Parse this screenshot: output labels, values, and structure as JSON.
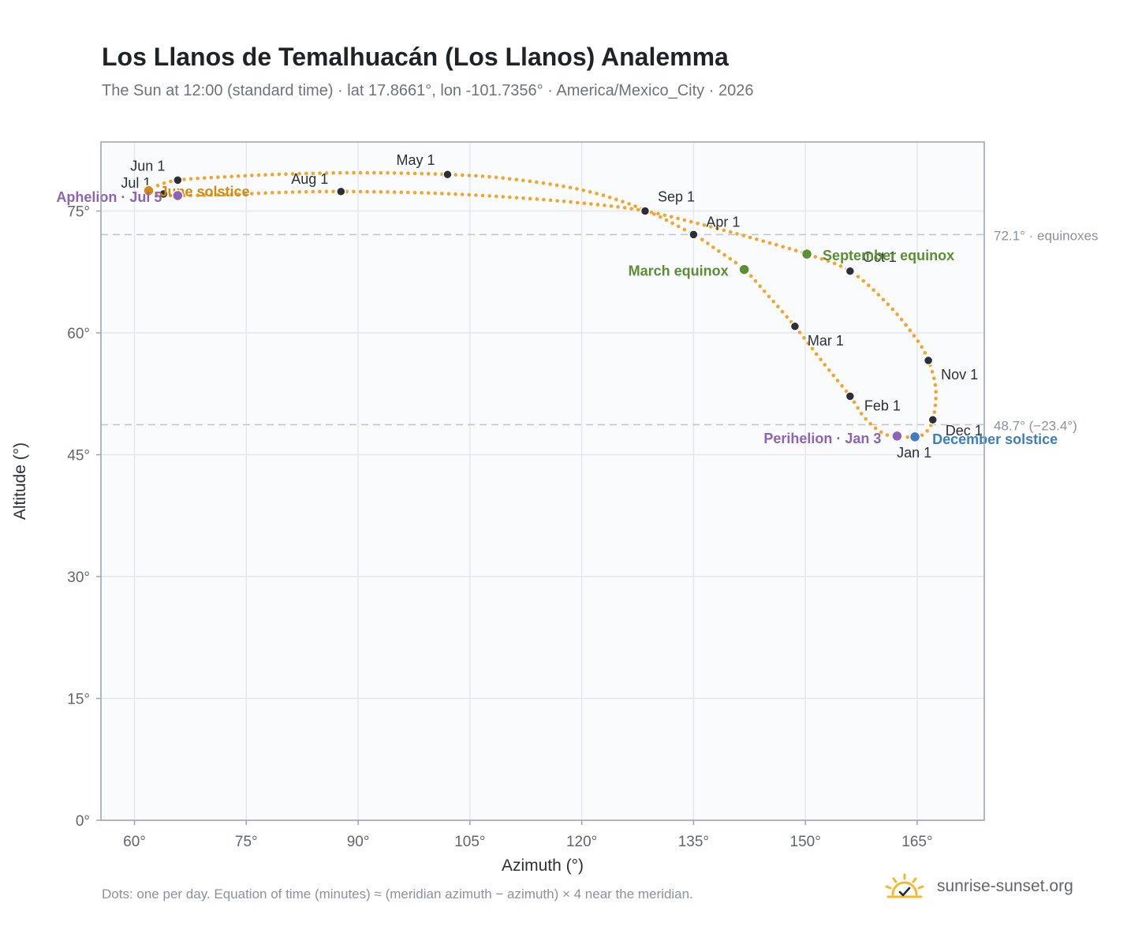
{
  "header": {
    "title": "Los Llanos de Temalhuacán (Los Llanos) Analemma",
    "subtitle": "The Sun at 12:00 (standard time) · lat 17.8661°, lon -101.7356° · America/Mexico_City · 2026"
  },
  "footer": {
    "note": "Dots: one per day. Equation of time (minutes) ≈ (meridian azimuth − azimuth) × 4 near the meridian.",
    "brand": "sunrise-sunset.org",
    "brand_icon": "sunrise-check-icon"
  },
  "colors": {
    "curve": "#f4a62a",
    "month_marker": "#2b3038",
    "equinox": "#5a8f33",
    "solstice_dec": "#3d7ec2",
    "solstice_jun": "#d48a12",
    "apsis": "#8e63b4",
    "reference_line": "#c2c8d0",
    "plot_bg": "#f9fbfd"
  },
  "chart_data": {
    "type": "scatter",
    "xlabel": "Azimuth (°)",
    "ylabel": "Altitude (°)",
    "xlim": [
      55.5,
      174
    ],
    "ylim": [
      0,
      83.5
    ],
    "x_ticks": [
      {
        "value": 60,
        "label": "60°"
      },
      {
        "value": 75,
        "label": "75°"
      },
      {
        "value": 90,
        "label": "90°"
      },
      {
        "value": 105,
        "label": "105°"
      },
      {
        "value": 120,
        "label": "120°"
      },
      {
        "value": 135,
        "label": "135°"
      },
      {
        "value": 150,
        "label": "150°"
      },
      {
        "value": 165,
        "label": "165°"
      }
    ],
    "y_ticks": [
      {
        "value": 0,
        "label": "0°"
      },
      {
        "value": 15,
        "label": "15°"
      },
      {
        "value": 30,
        "label": "30°"
      },
      {
        "value": 45,
        "label": "45°"
      },
      {
        "value": 60,
        "label": "60°"
      },
      {
        "value": 75,
        "label": "75°"
      }
    ],
    "grid": true,
    "reference_lines": [
      {
        "altitude": 72.1,
        "label": "72.1° · equinoxes"
      },
      {
        "altitude": 48.7,
        "label": "48.7° (−23.4°)"
      }
    ],
    "path": [
      {
        "az": 164.6,
        "alt": 47.2
      },
      {
        "az": 163.0,
        "alt": 47.2
      },
      {
        "az": 160.5,
        "alt": 47.6
      },
      {
        "az": 158.0,
        "alt": 49.5
      },
      {
        "az": 156.0,
        "alt": 52.2
      },
      {
        "az": 152.5,
        "alt": 56.2
      },
      {
        "az": 148.6,
        "alt": 60.8
      },
      {
        "az": 145.0,
        "alt": 64.6
      },
      {
        "az": 141.8,
        "alt": 67.8
      },
      {
        "az": 138.0,
        "alt": 70.3
      },
      {
        "az": 135.0,
        "alt": 72.1
      },
      {
        "az": 128.0,
        "alt": 75.3
      },
      {
        "az": 120.0,
        "alt": 77.6
      },
      {
        "az": 110.0,
        "alt": 79.0
      },
      {
        "az": 102.0,
        "alt": 79.5
      },
      {
        "az": 92.0,
        "alt": 79.7
      },
      {
        "az": 82.0,
        "alt": 79.6
      },
      {
        "az": 72.0,
        "alt": 79.2
      },
      {
        "az": 65.8,
        "alt": 78.8
      },
      {
        "az": 63.0,
        "alt": 78.1
      },
      {
        "az": 61.9,
        "alt": 77.5
      },
      {
        "az": 63.0,
        "alt": 77.0
      },
      {
        "az": 65.8,
        "alt": 76.9
      },
      {
        "az": 72.0,
        "alt": 77.0
      },
      {
        "az": 80.0,
        "alt": 77.3
      },
      {
        "az": 87.7,
        "alt": 77.4
      },
      {
        "az": 100.0,
        "alt": 77.2
      },
      {
        "az": 112.0,
        "alt": 76.6
      },
      {
        "az": 122.0,
        "alt": 75.8
      },
      {
        "az": 128.5,
        "alt": 75.0
      },
      {
        "az": 135.0,
        "alt": 73.6
      },
      {
        "az": 142.0,
        "alt": 71.9
      },
      {
        "az": 150.2,
        "alt": 69.7
      },
      {
        "az": 156.0,
        "alt": 67.6
      },
      {
        "az": 161.0,
        "alt": 63.6
      },
      {
        "az": 164.7,
        "alt": 59.5
      },
      {
        "az": 166.5,
        "alt": 56.6
      },
      {
        "az": 167.5,
        "alt": 53.0
      },
      {
        "az": 167.1,
        "alt": 49.3
      },
      {
        "az": 166.0,
        "alt": 47.6
      },
      {
        "az": 164.6,
        "alt": 47.2
      }
    ],
    "month_markers": [
      {
        "label": "Jan 1",
        "az": 164.6,
        "alt": 47.2
      },
      {
        "label": "Feb 1",
        "az": 156.0,
        "alt": 52.2
      },
      {
        "label": "Mar 1",
        "az": 148.6,
        "alt": 60.8
      },
      {
        "label": "Apr 1",
        "az": 135.0,
        "alt": 72.1
      },
      {
        "label": "May 1",
        "az": 102.0,
        "alt": 79.5
      },
      {
        "label": "Jun 1",
        "az": 65.8,
        "alt": 78.8
      },
      {
        "label": "Jul 1",
        "az": 63.9,
        "alt": 77.1
      },
      {
        "label": "Aug 1",
        "az": 87.7,
        "alt": 77.4
      },
      {
        "label": "Sep 1",
        "az": 128.5,
        "alt": 75.0
      },
      {
        "label": "Oct 1",
        "az": 156.0,
        "alt": 67.6
      },
      {
        "label": "Nov 1",
        "az": 166.5,
        "alt": 56.6
      },
      {
        "label": "Dec 1",
        "az": 167.1,
        "alt": 49.3
      }
    ],
    "events": [
      {
        "label": "March equinox",
        "az": 141.8,
        "alt": 67.8,
        "kind": "equinox"
      },
      {
        "label": "September equinox",
        "az": 150.2,
        "alt": 69.7,
        "kind": "equinox"
      },
      {
        "label": "June solstice",
        "az": 61.9,
        "alt": 77.5,
        "kind": "solstice_jun"
      },
      {
        "label": "December solstice",
        "az": 164.7,
        "alt": 47.2,
        "kind": "solstice_dec"
      },
      {
        "label": "Aphelion · Jul 5",
        "az": 65.8,
        "alt": 76.9,
        "kind": "apsis"
      },
      {
        "label": "Perihelion · Jan 3",
        "az": 162.3,
        "alt": 47.3,
        "kind": "apsis"
      }
    ]
  }
}
